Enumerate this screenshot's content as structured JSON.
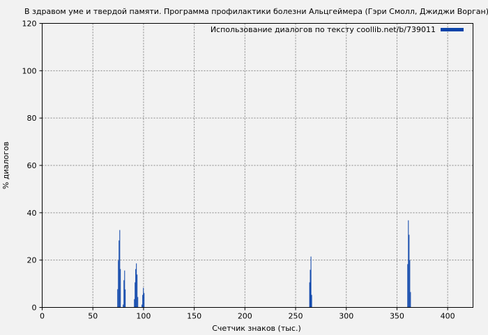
{
  "chart_data": {
    "type": "bar",
    "title": "В здравом уме и твердой памяти. Программа профилактики болезни Альцгеймера (Гэри Смолл, Джиджи Ворган)",
    "xlabel": "Счетчик знаков (тыс.)",
    "ylabel": "% диалогов",
    "xlim": [
      0,
      425
    ],
    "ylim": [
      0,
      120
    ],
    "xticks": [
      0,
      50,
      100,
      150,
      200,
      250,
      300,
      350,
      400
    ],
    "yticks": [
      0,
      20,
      40,
      60,
      80,
      100,
      120
    ],
    "grid": true,
    "legend": {
      "label": "Использование диалогов по тексту coollib.net/b/739011",
      "placement": "top-right"
    },
    "bar_width": 0.7,
    "color": "#0b44aa",
    "x": [
      74.1,
      74.8,
      75.5,
      76.2,
      76.8,
      79.6,
      80.3,
      81.0,
      81.6,
      90.6,
      91.3,
      91.9,
      92.6,
      93.3,
      94.0,
      98.1,
      98.8,
      99.5,
      100.2,
      263.5,
      264.1,
      264.8,
      265.5,
      360.2,
      360.9,
      361.6,
      362.3,
      363.0
    ],
    "values": [
      7.7,
      19.8,
      28.3,
      32.7,
      16.2,
      1.2,
      11.5,
      15.6,
      7.6,
      3.5,
      10.6,
      16.2,
      18.6,
      13.9,
      4.4,
      1.2,
      5.3,
      8.3,
      6.1,
      10.6,
      15.9,
      21.5,
      5.3,
      18.3,
      36.8,
      30.7,
      20.0,
      6.5
    ]
  }
}
